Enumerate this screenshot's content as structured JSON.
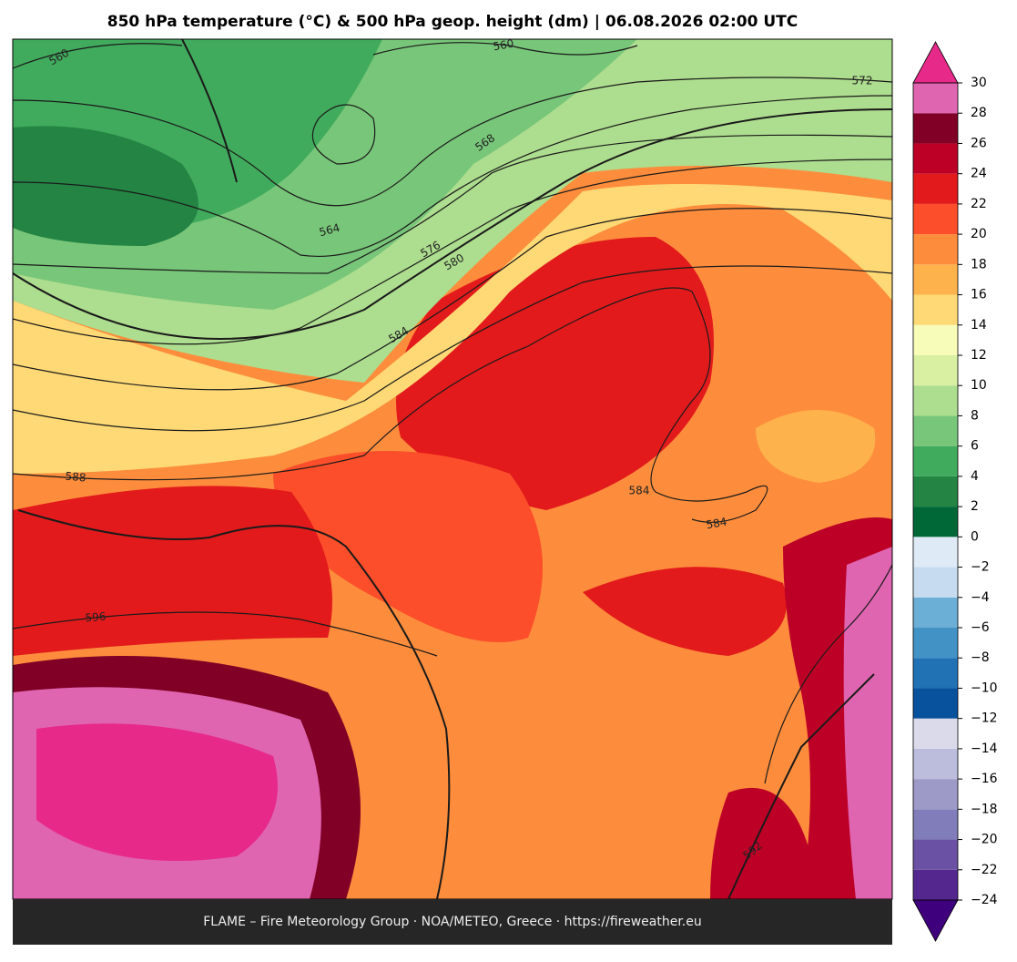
{
  "title": "850 hPa temperature (°C) & 500 hPa geop. height (dm)  |  06.08.2026 02:00 UTC",
  "footer": "FLAME – Fire Meteorology Group · NOA/METEO, Greece · https://fireweather.eu",
  "colorbar": {
    "lim": [
      -24,
      30
    ],
    "ticks": [
      {
        "value": -24,
        "label": "−24"
      },
      {
        "value": -22,
        "label": "−22"
      },
      {
        "value": -20,
        "label": "−20"
      },
      {
        "value": -18,
        "label": "−18"
      },
      {
        "value": -16,
        "label": "−16"
      },
      {
        "value": -14,
        "label": "−14"
      },
      {
        "value": -12,
        "label": "−12"
      },
      {
        "value": -10,
        "label": "−10"
      },
      {
        "value": -8,
        "label": "−8"
      },
      {
        "value": -6,
        "label": "−6"
      },
      {
        "value": -4,
        "label": "−4"
      },
      {
        "value": -2,
        "label": "−2"
      },
      0,
      2,
      4,
      6,
      8,
      10,
      12,
      14,
      16,
      18,
      20,
      22,
      24,
      26,
      28,
      30
    ],
    "colors": [
      "#54278f",
      "#6a51a3",
      "#807dba",
      "#9e9ac8",
      "#bcbddc",
      "#dadaeb",
      "#08519c",
      "#2171b5",
      "#4292c6",
      "#6baed6",
      "#c6dbef",
      "#deebf7",
      "#006837",
      "#238443",
      "#41ab5d",
      "#78c679",
      "#addd8e",
      "#d9f0a3",
      "#f7fcb9",
      "#fed976",
      "#feb24c",
      "#fd8d3c",
      "#fc4e2a",
      "#e31a1c",
      "#bd0026",
      "#800026",
      "#df65b0"
    ],
    "under_color": "#3f007d",
    "over_color": "#e7298a"
  },
  "contour_labels": [
    "560",
    "560",
    "572",
    "568",
    "564",
    "576",
    "580",
    "584",
    "588",
    "584",
    "584",
    "596",
    "592"
  ]
}
